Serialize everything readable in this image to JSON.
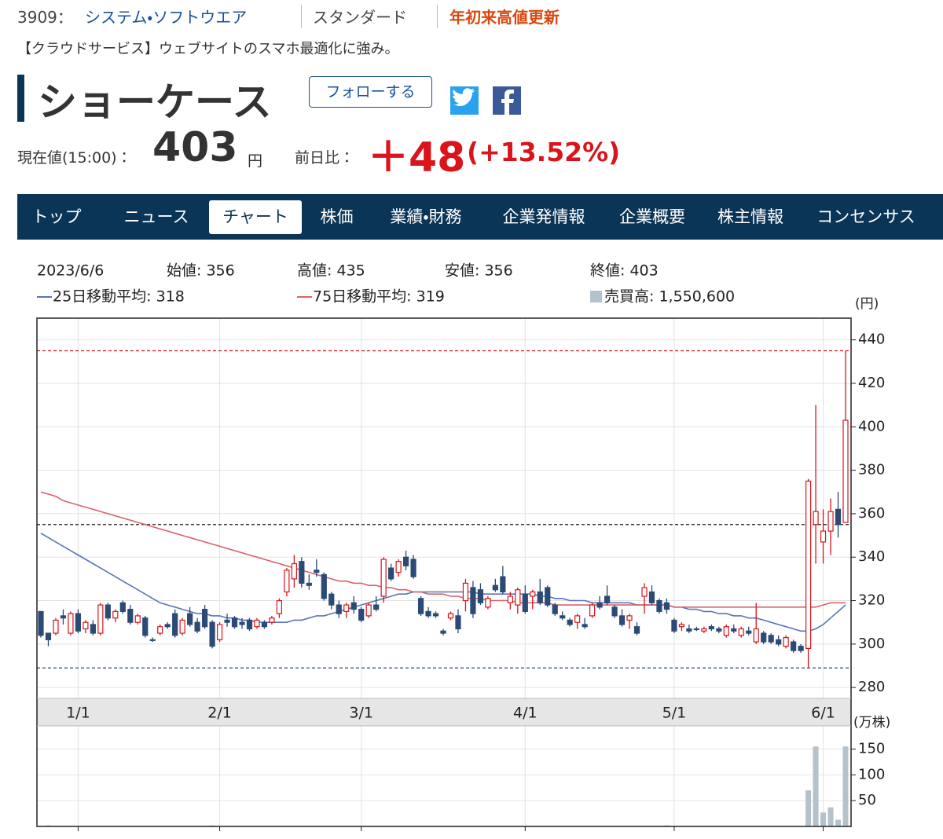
{
  "header": {
    "code": "3909：",
    "sector": "システム・ソフトウエア",
    "market": "スタンダード",
    "badge": "年初来高値更新",
    "description": "【クラウドサービス】ウェブサイトのスマホ最適化に強み。",
    "company": "ショーケース",
    "follow": "フォローする",
    "price_label": "現在値(15:00)：",
    "price": "403",
    "price_unit": "円",
    "change_label": "前日比：",
    "change": "＋48",
    "change_pct": "(+13.52%)"
  },
  "nav": {
    "tabs": [
      "トップ",
      "ニュース",
      "チャート",
      "株価",
      "業績・財務",
      "企業発情報",
      "企業概要",
      "株主情報",
      "コンセンサス"
    ],
    "active": 2
  },
  "info": {
    "date": "2023/6/6",
    "open": "始値: 356",
    "high": "高値: 435",
    "low": "安値: 356",
    "close": "終値: 403",
    "ma25": "25日移動平均: 318",
    "ma75": "75日移動平均: 319",
    "volume": "売買高: 1,550,600"
  },
  "chart_data": {
    "type": "candlestick",
    "y_unit": "(円)",
    "volume_unit": "(万株)",
    "up_color": "#d9141b",
    "down_color": "#2b4a75",
    "volume_color": "#b4c2cc",
    "x": [
      "12/26",
      "12/27",
      "12/28",
      "12/29",
      "12/30",
      "1/4",
      "1/5",
      "1/6",
      "1/10",
      "1/11",
      "1/12",
      "1/13",
      "1/16",
      "1/17",
      "1/18",
      "1/19",
      "1/20",
      "1/23",
      "1/24",
      "1/25",
      "1/26",
      "1/27",
      "1/30",
      "1/31",
      "2/1",
      "2/2",
      "2/3",
      "2/6",
      "2/7",
      "2/8",
      "2/9",
      "2/10",
      "2/13",
      "2/14",
      "2/15",
      "2/16",
      "2/17",
      "2/20",
      "2/21",
      "2/22",
      "2/24",
      "2/27",
      "2/28",
      "3/1",
      "3/2",
      "3/3",
      "3/6",
      "3/7",
      "3/8",
      "3/9",
      "3/10",
      "3/13",
      "3/14",
      "3/15",
      "3/16",
      "3/17",
      "3/20",
      "3/22",
      "3/23",
      "3/24",
      "3/27",
      "3/28",
      "3/29",
      "3/30",
      "3/31",
      "4/3",
      "4/4",
      "4/5",
      "4/6",
      "4/7",
      "4/10",
      "4/11",
      "4/12",
      "4/13",
      "4/14",
      "4/17",
      "4/18",
      "4/19",
      "4/20",
      "4/21",
      "4/24",
      "4/25",
      "4/26",
      "4/27",
      "4/28",
      "5/1",
      "5/2",
      "5/8",
      "5/9",
      "5/10",
      "5/11",
      "5/12",
      "5/15",
      "5/16",
      "5/17",
      "5/18",
      "5/19",
      "5/22",
      "5/23",
      "5/24",
      "5/25",
      "5/26",
      "5/29",
      "5/30",
      "5/31",
      "6/1",
      "6/2",
      "6/5",
      "6/6"
    ],
    "candles": [
      [
        315,
        315,
        303,
        304
      ],
      [
        305,
        305,
        299,
        302
      ],
      [
        305,
        312,
        304,
        311
      ],
      [
        313,
        316,
        309,
        312
      ],
      [
        305,
        315,
        304,
        314
      ],
      [
        314,
        316,
        305,
        306
      ],
      [
        307,
        311,
        305,
        310
      ],
      [
        309,
        311,
        304,
        305
      ],
      [
        305,
        319,
        304,
        318
      ],
      [
        318,
        319,
        311,
        312
      ],
      [
        312,
        316,
        310,
        315
      ],
      [
        319,
        320,
        314,
        315
      ],
      [
        316,
        318,
        309,
        310
      ],
      [
        310,
        314,
        309,
        313
      ],
      [
        312,
        313,
        303,
        304
      ],
      [
        302,
        303,
        301,
        302
      ],
      [
        305,
        309,
        304,
        308
      ],
      [
        309,
        310,
        307,
        308
      ],
      [
        314,
        316,
        303,
        304
      ],
      [
        305,
        312,
        304,
        311
      ],
      [
        314,
        317,
        308,
        309
      ],
      [
        310,
        312,
        305,
        306
      ],
      [
        316,
        318,
        307,
        308
      ],
      [
        310,
        311,
        298,
        299
      ],
      [
        302,
        310,
        301,
        309
      ],
      [
        311,
        314,
        308,
        310
      ],
      [
        312,
        313,
        307,
        308
      ],
      [
        310,
        312,
        307,
        309
      ],
      [
        311,
        312,
        306,
        307
      ],
      [
        308,
        312,
        307,
        311
      ],
      [
        310,
        311,
        307,
        308
      ],
      [
        310,
        313,
        309,
        312
      ],
      [
        314,
        321,
        312,
        320
      ],
      [
        324,
        335,
        322,
        334
      ],
      [
        330,
        341,
        326,
        337
      ],
      [
        338,
        340,
        326,
        328
      ],
      [
        328,
        332,
        325,
        327
      ],
      [
        334,
        339,
        331,
        333
      ],
      [
        332,
        333,
        320,
        321
      ],
      [
        323,
        324,
        316,
        318
      ],
      [
        318,
        320,
        312,
        314
      ],
      [
        315,
        319,
        312,
        318
      ],
      [
        319,
        322,
        314,
        316
      ],
      [
        316,
        317,
        310,
        311
      ],
      [
        313,
        319,
        312,
        318
      ],
      [
        318,
        322,
        315,
        316
      ],
      [
        322,
        340,
        319,
        339
      ],
      [
        335,
        337,
        329,
        330
      ],
      [
        333,
        339,
        331,
        338
      ],
      [
        340,
        343,
        334,
        336
      ],
      [
        339,
        341,
        330,
        331
      ],
      [
        321,
        322,
        313,
        314
      ],
      [
        315,
        317,
        312,
        313
      ],
      [
        314,
        315,
        312,
        313
      ],
      [
        306,
        307,
        304,
        305
      ],
      [
        312,
        315,
        311,
        314
      ],
      [
        313,
        316,
        305,
        307
      ],
      [
        320,
        330,
        315,
        328
      ],
      [
        326,
        329,
        312,
        314
      ],
      [
        325,
        328,
        318,
        319
      ],
      [
        317,
        322,
        316,
        321
      ],
      [
        327,
        330,
        324,
        325
      ],
      [
        331,
        336,
        323,
        324
      ],
      [
        319,
        324,
        316,
        322
      ],
      [
        318,
        326,
        314,
        325
      ],
      [
        323,
        327,
        314,
        315
      ],
      [
        322,
        325,
        316,
        324
      ],
      [
        324,
        330,
        318,
        319
      ],
      [
        326,
        327,
        317,
        318
      ],
      [
        318,
        319,
        313,
        314
      ],
      [
        313,
        315,
        311,
        312
      ],
      [
        311,
        312,
        308,
        309
      ],
      [
        310,
        314,
        307,
        313
      ],
      [
        309,
        312,
        307,
        308
      ],
      [
        313,
        319,
        312,
        318
      ],
      [
        319,
        322,
        316,
        317
      ],
      [
        322,
        327,
        318,
        319
      ],
      [
        317,
        318,
        312,
        313
      ],
      [
        313,
        316,
        308,
        309
      ],
      [
        311,
        314,
        307,
        313
      ],
      [
        308,
        310,
        304,
        305
      ],
      [
        322,
        328,
        314,
        326
      ],
      [
        324,
        327,
        318,
        319
      ],
      [
        320,
        321,
        314,
        315
      ],
      [
        319,
        321,
        314,
        316
      ],
      [
        311,
        312,
        305,
        306
      ],
      [
        308,
        310,
        306,
        309
      ],
      [
        307,
        309,
        305,
        306
      ],
      [
        307,
        308,
        306,
        307
      ],
      [
        306,
        308,
        305,
        307
      ],
      [
        308,
        309,
        306,
        307
      ],
      [
        307,
        308,
        305,
        306
      ],
      [
        304,
        309,
        303,
        308
      ],
      [
        307,
        309,
        305,
        306
      ],
      [
        304,
        308,
        303,
        307
      ],
      [
        306,
        308,
        304,
        305
      ],
      [
        301,
        319,
        300,
        307
      ],
      [
        305,
        306,
        300,
        301
      ],
      [
        304,
        305,
        300,
        301
      ],
      [
        302,
        304,
        299,
        300
      ],
      [
        299,
        304,
        298,
        303
      ],
      [
        301,
        302,
        296,
        297
      ],
      [
        299,
        300,
        296,
        297
      ],
      [
        298,
        376,
        289,
        375
      ],
      [
        355,
        410,
        337,
        361
      ],
      [
        347,
        362,
        337,
        352
      ],
      [
        352,
        367,
        341,
        361
      ],
      [
        362,
        370,
        349,
        355
      ],
      [
        356,
        435,
        356,
        403
      ]
    ],
    "series": [
      {
        "color": "#5a74b8",
        "values": [
          351,
          349,
          347,
          345,
          343,
          341,
          339,
          337,
          335,
          333,
          331,
          329,
          327,
          325,
          323,
          321,
          319,
          318,
          317,
          316,
          315,
          314,
          314,
          313,
          313,
          312,
          312,
          311,
          311,
          310,
          310,
          310,
          310,
          310,
          311,
          311,
          312,
          313,
          313,
          314,
          315,
          316,
          317,
          318,
          319,
          320,
          321,
          322,
          323,
          323,
          324,
          324,
          324,
          324,
          324,
          324,
          324,
          324,
          324,
          323,
          323,
          323,
          323,
          323,
          323,
          323,
          323,
          322,
          322,
          321,
          321,
          320,
          320,
          320,
          319,
          319,
          319,
          319,
          319,
          319,
          318,
          318,
          318,
          318,
          318,
          317,
          317,
          316,
          316,
          315,
          315,
          314,
          314,
          313,
          313,
          312,
          312,
          311,
          310,
          309,
          308,
          307,
          306,
          306,
          307,
          309,
          312,
          315,
          318
        ]
      },
      {
        "color": "#d9636e",
        "values": [
          370,
          369,
          368,
          366,
          365,
          364,
          363,
          362,
          361,
          360,
          359,
          358,
          357,
          356,
          355,
          354,
          353,
          352,
          351,
          350,
          349,
          348,
          347,
          346,
          345,
          344,
          343,
          342,
          341,
          340,
          339,
          338,
          337,
          336,
          335,
          334,
          333,
          332,
          331,
          330,
          329,
          329,
          328,
          328,
          327,
          327,
          326,
          326,
          325,
          325,
          324,
          324,
          323,
          323,
          323,
          322,
          322,
          321,
          321,
          321,
          320,
          320,
          320,
          320,
          319,
          319,
          319,
          319,
          319,
          318,
          318,
          318,
          318,
          318,
          318,
          318,
          318,
          318,
          318,
          318,
          318,
          318,
          318,
          318,
          318,
          317,
          317,
          317,
          317,
          317,
          317,
          317,
          317,
          317,
          317,
          317,
          317,
          317,
          317,
          317,
          317,
          317,
          317,
          317,
          317,
          318,
          319,
          319,
          319
        ]
      }
    ],
    "volume": [
      1,
      2,
      1,
      1,
      1,
      1,
      1,
      1,
      1,
      1,
      1,
      1,
      1,
      1,
      1,
      1,
      1,
      1,
      1,
      1,
      1,
      1,
      1,
      2,
      1,
      1,
      1,
      1,
      1,
      1,
      1,
      1,
      1,
      1,
      1,
      1,
      1,
      1,
      1,
      1,
      1,
      1,
      1,
      1,
      1,
      1,
      1,
      1,
      1,
      1,
      1,
      1,
      1,
      1,
      1,
      1,
      1,
      1,
      1,
      1,
      1,
      1,
      1,
      1,
      1,
      1,
      1,
      1,
      1,
      1,
      1,
      1,
      1,
      1,
      1,
      1,
      1,
      1,
      1,
      1,
      1,
      1,
      1,
      1,
      2,
      1,
      1,
      1,
      1,
      1,
      1,
      1,
      1,
      1,
      1,
      1,
      1,
      1,
      1,
      1,
      1,
      1,
      1,
      70,
      155,
      27,
      37,
      13,
      155.06
    ],
    "ref_lines": [
      {
        "value": 435,
        "color": "#d9141b"
      },
      {
        "value": 355,
        "color": "#222222"
      },
      {
        "value": 289,
        "color": "#2b4a75"
      }
    ],
    "ylim": [
      275,
      450
    ],
    "yticks": [
      280,
      300,
      320,
      340,
      360,
      380,
      400,
      420,
      440
    ],
    "vlim": [
      0,
      195
    ],
    "vticks": [
      50,
      100,
      150
    ],
    "xticks": [
      {
        "value": "1/4",
        "label": "1/1"
      },
      "2/1",
      "3/1",
      {
        "value": "4/3",
        "label": "4/1"
      },
      "5/1",
      "6/1"
    ],
    "grid": true
  }
}
